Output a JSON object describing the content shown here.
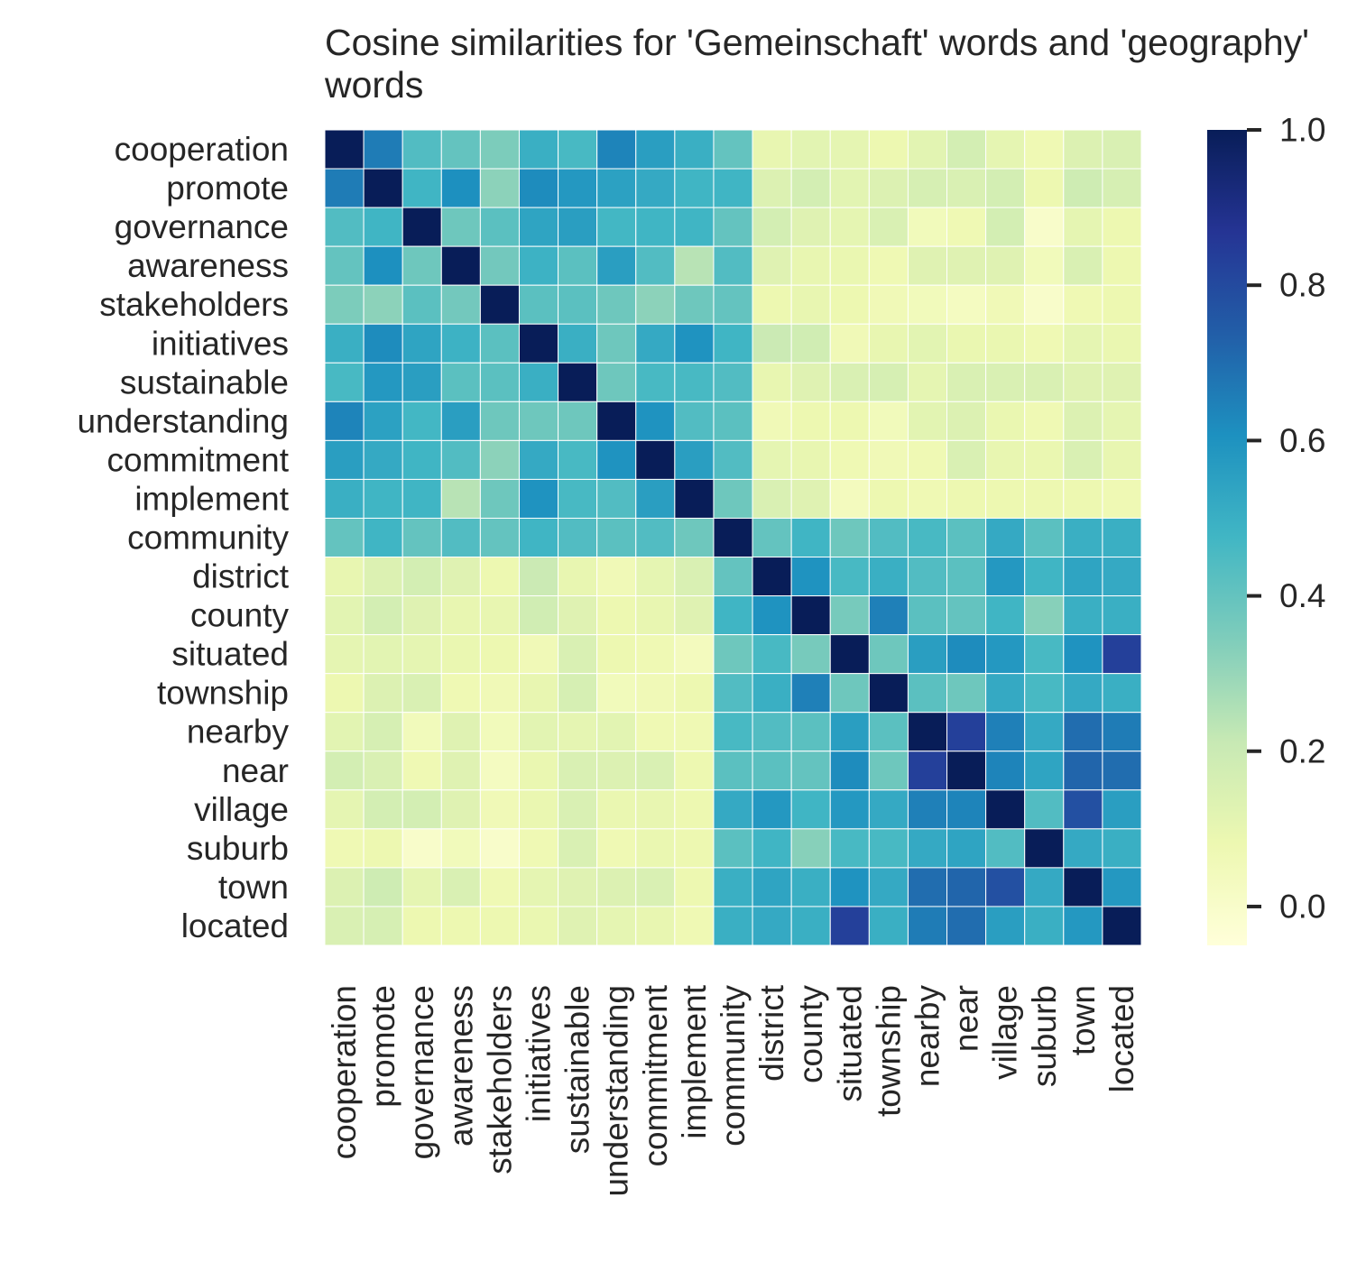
{
  "chart_data": {
    "type": "heatmap",
    "title": "Cosine similarities for 'Gemeinschaft' words and 'geography' words",
    "row_labels": [
      "cooperation",
      "promote",
      "governance",
      "awareness",
      "stakeholders",
      "initiatives",
      "sustainable",
      "understanding",
      "commitment",
      "implement",
      "community",
      "district",
      "county",
      "situated",
      "township",
      "nearby",
      "near",
      "village",
      "suburb",
      "town",
      "located"
    ],
    "col_labels": [
      "cooperation",
      "promote",
      "governance",
      "awareness",
      "stakeholders",
      "initiatives",
      "sustainable",
      "understanding",
      "commitment",
      "implement",
      "community",
      "district",
      "county",
      "situated",
      "township",
      "nearby",
      "near",
      "village",
      "suburb",
      "town",
      "located"
    ],
    "values": [
      [
        1.0,
        0.66,
        0.44,
        0.4,
        0.35,
        0.5,
        0.46,
        0.64,
        0.56,
        0.5,
        0.4,
        0.1,
        0.12,
        0.11,
        0.08,
        0.12,
        0.17,
        0.11,
        0.07,
        0.14,
        0.15
      ],
      [
        0.66,
        1.0,
        0.48,
        0.61,
        0.32,
        0.62,
        0.58,
        0.55,
        0.52,
        0.48,
        0.48,
        0.14,
        0.17,
        0.12,
        0.14,
        0.16,
        0.15,
        0.17,
        0.08,
        0.19,
        0.16
      ],
      [
        0.44,
        0.48,
        1.0,
        0.38,
        0.42,
        0.54,
        0.56,
        0.47,
        0.48,
        0.48,
        0.4,
        0.17,
        0.13,
        0.11,
        0.15,
        0.05,
        0.07,
        0.17,
        0.0,
        0.11,
        0.08
      ],
      [
        0.4,
        0.61,
        0.38,
        1.0,
        0.37,
        0.49,
        0.42,
        0.56,
        0.44,
        0.24,
        0.44,
        0.13,
        0.1,
        0.09,
        0.07,
        0.13,
        0.13,
        0.13,
        0.05,
        0.15,
        0.08
      ],
      [
        0.35,
        0.32,
        0.42,
        0.37,
        1.0,
        0.42,
        0.42,
        0.38,
        0.32,
        0.38,
        0.4,
        0.08,
        0.1,
        0.08,
        0.06,
        0.05,
        0.03,
        0.06,
        0.0,
        0.07,
        0.08
      ],
      [
        0.5,
        0.62,
        0.54,
        0.49,
        0.42,
        1.0,
        0.5,
        0.38,
        0.52,
        0.6,
        0.48,
        0.2,
        0.18,
        0.06,
        0.1,
        0.12,
        0.09,
        0.09,
        0.07,
        0.11,
        0.09
      ],
      [
        0.46,
        0.58,
        0.56,
        0.42,
        0.42,
        0.5,
        1.0,
        0.38,
        0.46,
        0.46,
        0.44,
        0.1,
        0.13,
        0.15,
        0.16,
        0.11,
        0.15,
        0.15,
        0.15,
        0.13,
        0.13
      ],
      [
        0.64,
        0.55,
        0.47,
        0.56,
        0.38,
        0.38,
        0.38,
        1.0,
        0.6,
        0.44,
        0.42,
        0.06,
        0.08,
        0.08,
        0.05,
        0.12,
        0.14,
        0.09,
        0.07,
        0.14,
        0.11
      ],
      [
        0.56,
        0.52,
        0.48,
        0.44,
        0.32,
        0.52,
        0.46,
        0.6,
        1.0,
        0.56,
        0.44,
        0.11,
        0.1,
        0.07,
        0.06,
        0.07,
        0.15,
        0.1,
        0.09,
        0.15,
        0.1
      ],
      [
        0.5,
        0.48,
        0.48,
        0.24,
        0.38,
        0.6,
        0.46,
        0.44,
        0.56,
        1.0,
        0.38,
        0.15,
        0.13,
        0.04,
        0.08,
        0.07,
        0.08,
        0.08,
        0.08,
        0.08,
        0.07
      ],
      [
        0.4,
        0.48,
        0.4,
        0.44,
        0.4,
        0.48,
        0.44,
        0.42,
        0.44,
        0.38,
        1.0,
        0.4,
        0.48,
        0.38,
        0.44,
        0.46,
        0.42,
        0.52,
        0.42,
        0.5,
        0.5
      ],
      [
        0.1,
        0.14,
        0.17,
        0.13,
        0.08,
        0.2,
        0.1,
        0.06,
        0.11,
        0.15,
        0.4,
        1.0,
        0.6,
        0.46,
        0.5,
        0.44,
        0.42,
        0.58,
        0.48,
        0.54,
        0.52
      ],
      [
        0.12,
        0.17,
        0.13,
        0.1,
        0.1,
        0.18,
        0.13,
        0.08,
        0.1,
        0.13,
        0.48,
        0.6,
        1.0,
        0.36,
        0.65,
        0.42,
        0.4,
        0.48,
        0.33,
        0.5,
        0.5
      ],
      [
        0.11,
        0.12,
        0.11,
        0.09,
        0.08,
        0.06,
        0.15,
        0.08,
        0.07,
        0.04,
        0.38,
        0.46,
        0.36,
        1.0,
        0.38,
        0.56,
        0.62,
        0.58,
        0.46,
        0.6,
        0.83
      ],
      [
        0.08,
        0.14,
        0.15,
        0.07,
        0.06,
        0.1,
        0.16,
        0.05,
        0.06,
        0.08,
        0.44,
        0.5,
        0.65,
        0.38,
        1.0,
        0.42,
        0.38,
        0.52,
        0.46,
        0.52,
        0.5
      ],
      [
        0.12,
        0.16,
        0.05,
        0.13,
        0.05,
        0.12,
        0.11,
        0.12,
        0.07,
        0.07,
        0.46,
        0.44,
        0.42,
        0.56,
        0.42,
        1.0,
        0.83,
        0.65,
        0.52,
        0.7,
        0.66
      ],
      [
        0.17,
        0.15,
        0.07,
        0.13,
        0.03,
        0.09,
        0.15,
        0.14,
        0.15,
        0.08,
        0.42,
        0.42,
        0.4,
        0.62,
        0.38,
        0.83,
        1.0,
        0.64,
        0.54,
        0.72,
        0.7
      ],
      [
        0.11,
        0.17,
        0.17,
        0.13,
        0.06,
        0.09,
        0.15,
        0.09,
        0.1,
        0.08,
        0.52,
        0.58,
        0.48,
        0.58,
        0.52,
        0.65,
        0.64,
        1.0,
        0.44,
        0.78,
        0.56
      ],
      [
        0.07,
        0.08,
        0.0,
        0.05,
        0.0,
        0.07,
        0.15,
        0.07,
        0.09,
        0.08,
        0.42,
        0.48,
        0.33,
        0.46,
        0.46,
        0.52,
        0.54,
        0.44,
        1.0,
        0.52,
        0.5
      ],
      [
        0.14,
        0.19,
        0.11,
        0.15,
        0.07,
        0.11,
        0.13,
        0.14,
        0.15,
        0.08,
        0.5,
        0.54,
        0.5,
        0.6,
        0.52,
        0.7,
        0.72,
        0.78,
        0.52,
        1.0,
        0.58
      ],
      [
        0.15,
        0.16,
        0.08,
        0.08,
        0.08,
        0.09,
        0.13,
        0.11,
        0.1,
        0.07,
        0.5,
        0.52,
        0.5,
        0.83,
        0.5,
        0.66,
        0.7,
        0.56,
        0.5,
        0.58,
        1.0
      ]
    ],
    "vmin": -0.05,
    "vmax": 1.0,
    "colormap": "YlGnBu",
    "colorbar_ticks": [
      0.0,
      0.2,
      0.4,
      0.6,
      0.8,
      1.0
    ],
    "colorbar_tick_labels": [
      "0.0",
      "0.2",
      "0.4",
      "0.6",
      "0.8",
      "1.0"
    ],
    "grid": false,
    "cell_border_color": "#ffffff"
  }
}
